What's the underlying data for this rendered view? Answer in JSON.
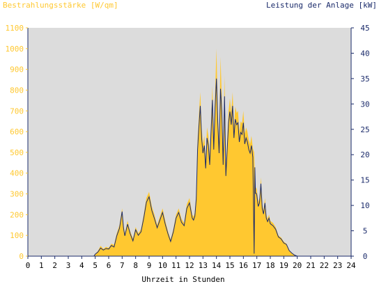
{
  "chart_data": {
    "type": "area",
    "title_left": "Bestrahlungsstärke [W/qm]",
    "title_right": "Leistung der Anlage [kW]",
    "xlabel": "Uhrzeit in Stunden",
    "xlim": [
      0,
      24
    ],
    "x_ticks": [
      0,
      1,
      2,
      3,
      4,
      5,
      6,
      7,
      8,
      9,
      10,
      11,
      12,
      13,
      14,
      15,
      16,
      17,
      18,
      19,
      20,
      21,
      22,
      23,
      24
    ],
    "y_left": {
      "lim": [
        0,
        1100
      ],
      "ticks": [
        0,
        100,
        200,
        300,
        400,
        500,
        600,
        700,
        800,
        900,
        1000,
        1100
      ]
    },
    "y_right": {
      "lim": [
        0,
        45
      ],
      "ticks": [
        0,
        5,
        10,
        15,
        20,
        25,
        30,
        35,
        40,
        45
      ]
    },
    "colors": {
      "irradiance": "#ffc830",
      "power": "#1a2a6a",
      "plot_bg": "#dcdcdc",
      "axis": "#1a2a6a"
    },
    "series": [
      {
        "name": "Bestrahlungsstärke [W/qm]",
        "axis": "left",
        "style": "area",
        "x": [
          0,
          4.9,
          5.0,
          5.2,
          5.4,
          5.6,
          5.8,
          6.0,
          6.2,
          6.4,
          6.6,
          6.8,
          7.0,
          7.1,
          7.2,
          7.4,
          7.6,
          7.8,
          8.0,
          8.2,
          8.4,
          8.6,
          8.8,
          9.0,
          9.2,
          9.4,
          9.6,
          9.8,
          10.0,
          10.2,
          10.4,
          10.6,
          10.8,
          11.0,
          11.2,
          11.4,
          11.6,
          11.8,
          12.0,
          12.2,
          12.3,
          12.4,
          12.5,
          12.6,
          12.7,
          12.8,
          12.9,
          13.0,
          13.1,
          13.2,
          13.3,
          13.4,
          13.5,
          13.6,
          13.7,
          13.8,
          13.9,
          14.0,
          14.1,
          14.2,
          14.3,
          14.4,
          14.5,
          14.6,
          14.7,
          14.8,
          14.9,
          15.0,
          15.1,
          15.2,
          15.3,
          15.4,
          15.5,
          15.6,
          15.7,
          15.8,
          15.9,
          16.0,
          16.1,
          16.2,
          16.3,
          16.4,
          16.5,
          16.6,
          16.7,
          16.8,
          16.85,
          16.9,
          16.95,
          17.0,
          17.1,
          17.2,
          17.3,
          17.4,
          17.5,
          17.6,
          17.7,
          17.8,
          17.9,
          18.0,
          18.2,
          18.4,
          18.6,
          18.8,
          19.0,
          19.2,
          19.4,
          19.6,
          19.8,
          20.0,
          20.1,
          24
        ],
        "values": [
          0,
          0,
          10,
          25,
          50,
          35,
          45,
          40,
          60,
          55,
          110,
          150,
          230,
          150,
          110,
          170,
          120,
          85,
          140,
          110,
          130,
          200,
          280,
          310,
          240,
          200,
          150,
          190,
          230,
          170,
          120,
          80,
          130,
          200,
          230,
          180,
          160,
          250,
          280,
          200,
          190,
          210,
          300,
          560,
          680,
          790,
          620,
          540,
          580,
          460,
          620,
          580,
          480,
          650,
          820,
          560,
          780,
          1000,
          700,
          540,
          960,
          760,
          480,
          870,
          420,
          560,
          700,
          760,
          690,
          790,
          620,
          720,
          690,
          700,
          600,
          650,
          640,
          700,
          590,
          620,
          600,
          560,
          540,
          580,
          520,
          500,
          400,
          330,
          330,
          320,
          260,
          280,
          380,
          250,
          220,
          280,
          200,
          180,
          200,
          170,
          160,
          140,
          100,
          90,
          70,
          60,
          30,
          15,
          5,
          0,
          0,
          0
        ]
      },
      {
        "name": "Leistung der Anlage [kW]",
        "axis": "right",
        "style": "line",
        "x": [
          0,
          4.9,
          5.0,
          5.2,
          5.4,
          5.6,
          5.8,
          6.0,
          6.2,
          6.4,
          6.6,
          6.8,
          7.0,
          7.1,
          7.2,
          7.4,
          7.6,
          7.8,
          8.0,
          8.2,
          8.4,
          8.6,
          8.8,
          9.0,
          9.2,
          9.4,
          9.6,
          9.8,
          10.0,
          10.2,
          10.4,
          10.6,
          10.8,
          11.0,
          11.2,
          11.4,
          11.6,
          11.8,
          12.0,
          12.2,
          12.3,
          12.4,
          12.5,
          12.6,
          12.7,
          12.8,
          12.9,
          13.0,
          13.1,
          13.2,
          13.3,
          13.4,
          13.5,
          13.6,
          13.7,
          13.8,
          13.9,
          14.0,
          14.1,
          14.2,
          14.3,
          14.4,
          14.5,
          14.6,
          14.7,
          14.8,
          14.9,
          15.0,
          15.1,
          15.2,
          15.3,
          15.4,
          15.5,
          15.6,
          15.7,
          15.8,
          15.9,
          16.0,
          16.1,
          16.2,
          16.3,
          16.4,
          16.5,
          16.6,
          16.7,
          16.8,
          16.85,
          16.9,
          16.95,
          17.0,
          17.1,
          17.2,
          17.3,
          17.4,
          17.5,
          17.6,
          17.7,
          17.8,
          17.9,
          18.0,
          18.2,
          18.4,
          18.6,
          18.8,
          19.0,
          19.2,
          19.4,
          19.6,
          19.8,
          20.0,
          20.1,
          24
        ],
        "values": [
          0,
          0,
          0.4,
          0.8,
          1.6,
          1.2,
          1.5,
          1.4,
          2.1,
          1.8,
          4.0,
          5.5,
          8.8,
          5.5,
          4.0,
          6.3,
          4.4,
          3.0,
          5.2,
          4.1,
          4.8,
          7.5,
          10.6,
          11.7,
          9.0,
          7.4,
          5.6,
          7.1,
          8.6,
          6.3,
          4.4,
          2.9,
          4.8,
          7.5,
          8.6,
          6.7,
          6.0,
          9.4,
          10.5,
          7.5,
          7.1,
          7.9,
          11.3,
          21.0,
          25.5,
          29.6,
          23.3,
          20.3,
          21.8,
          17.3,
          23.3,
          21.8,
          18.0,
          24.4,
          30.8,
          21.0,
          29.3,
          35.0,
          26.3,
          20.3,
          33.0,
          28.5,
          18.0,
          31.5,
          15.8,
          21.0,
          26.3,
          28.5,
          25.9,
          29.6,
          23.3,
          27.0,
          25.9,
          26.3,
          22.5,
          24.4,
          24.0,
          26.3,
          22.1,
          23.3,
          22.5,
          21.0,
          20.3,
          21.8,
          19.5,
          0.5,
          17.5,
          12.4,
          12.4,
          12.0,
          9.8,
          10.5,
          14.3,
          9.4,
          8.3,
          10.5,
          7.5,
          6.8,
          7.5,
          6.4,
          6.0,
          5.3,
          3.8,
          3.4,
          2.6,
          2.3,
          1.1,
          0.6,
          0.2,
          0,
          0,
          0
        ]
      }
    ]
  }
}
